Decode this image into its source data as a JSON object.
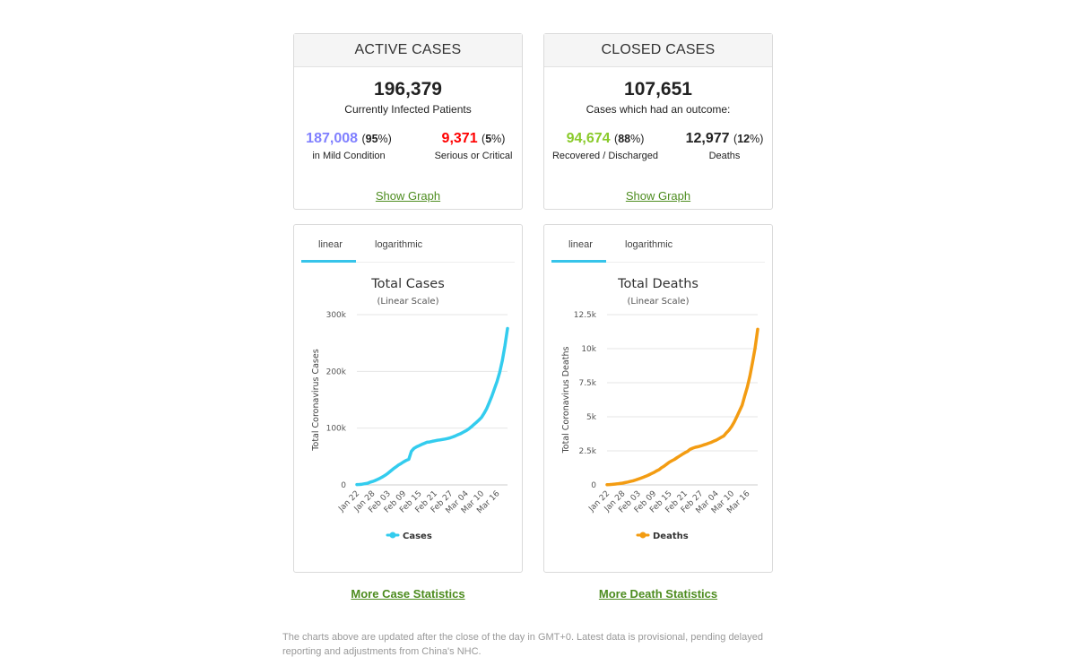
{
  "active": {
    "title": "ACTIVE CASES",
    "total": "196,379",
    "total_label": "Currently Infected Patients",
    "mild_value": "187,008",
    "mild_pct": "95",
    "mild_label": "in Mild Condition",
    "serious_value": "9,371",
    "serious_pct": "5",
    "serious_label": "Serious or Critical",
    "show_graph": "Show Graph"
  },
  "closed": {
    "title": "CLOSED CASES",
    "total": "107,651",
    "total_label": "Cases which had an outcome:",
    "recovered_value": "94,674",
    "recovered_pct": "88",
    "recovered_label": "Recovered / Discharged",
    "deaths_value": "12,977",
    "deaths_pct": "12",
    "deaths_label": "Deaths",
    "show_graph": "Show Graph"
  },
  "colors": {
    "mild": "#8080ff",
    "serious": "#ff0000",
    "recovered": "#8ACA2B",
    "link": "#4d8c1f",
    "cases_line": "#33ccee",
    "deaths_line": "#f39c12"
  },
  "tabs": {
    "linear": "linear",
    "logarithmic": "logarithmic"
  },
  "links": {
    "more_case": "More Case Statistics",
    "more_death": "More Death Statistics"
  },
  "footnote": "The charts above are updated after the close of the day in GMT+0. Latest data is provisional, pending delayed reporting and adjustments from China's NHC.",
  "chart_data": [
    {
      "type": "line",
      "title": "Total Cases",
      "subtitle": "(Linear Scale)",
      "ylabel": "Total Coronavirus Cases",
      "xlabel": "",
      "ylim": [
        0,
        300000
      ],
      "yticks": [
        0,
        100000,
        200000,
        300000
      ],
      "ytick_labels": [
        "0",
        "100k",
        "200k",
        "300k"
      ],
      "xtick_labels": [
        "Jan 22",
        "Jan 28",
        "Feb 03",
        "Feb 09",
        "Feb 15",
        "Feb 21",
        "Feb 27",
        "Mar 04",
        "Mar 10",
        "Mar 16"
      ],
      "xtick_index": [
        0,
        6,
        12,
        18,
        24,
        30,
        36,
        42,
        48,
        54
      ],
      "legend": "bottom",
      "grid": true,
      "series": [
        {
          "name": "Cases",
          "color": "#33ccee",
          "values": [
            580,
            845,
            1317,
            2015,
            2800,
            4581,
            6058,
            7813,
            9823,
            11950,
            14553,
            17391,
            20630,
            24545,
            28266,
            31439,
            34876,
            37552,
            40553,
            43099,
            45134,
            59287,
            64438,
            67100,
            69197,
            71329,
            73332,
            75184,
            75700,
            76677,
            77673,
            78651,
            79205,
            80087,
            80828,
            81820,
            83112,
            84615,
            86604,
            88585,
            90443,
            93016,
            95314,
            98425,
            102050,
            106099,
            109991,
            114381,
            118948,
            126214,
            134576,
            145483,
            156653,
            169593,
            182490,
            198238,
            218822,
            244933,
            275597
          ]
        }
      ]
    },
    {
      "type": "line",
      "title": "Total Deaths",
      "subtitle": "(Linear Scale)",
      "ylabel": "Total Coronavirus Deaths",
      "xlabel": "",
      "ylim": [
        0,
        12500
      ],
      "yticks": [
        0,
        2500,
        5000,
        7500,
        10000,
        12500
      ],
      "ytick_labels": [
        "0",
        "2.5k",
        "5k",
        "7.5k",
        "10k",
        "12.5k"
      ],
      "xtick_labels": [
        "Jan 22",
        "Jan 28",
        "Feb 03",
        "Feb 09",
        "Feb 15",
        "Feb 21",
        "Feb 27",
        "Mar 04",
        "Mar 10",
        "Mar 16"
      ],
      "xtick_index": [
        0,
        6,
        12,
        18,
        24,
        30,
        36,
        42,
        48,
        54
      ],
      "legend": "bottom",
      "grid": true,
      "series": [
        {
          "name": "Deaths",
          "color": "#f39c12",
          "values": [
            17,
            25,
            41,
            56,
            80,
            106,
            132,
            170,
            213,
            259,
            304,
            362,
            426,
            492,
            565,
            638,
            724,
            813,
            910,
            1018,
            1115,
            1261,
            1383,
            1526,
            1669,
            1775,
            1873,
            2009,
            2126,
            2247,
            2360,
            2460,
            2618,
            2699,
            2763,
            2800,
            2858,
            2923,
            2977,
            3050,
            3117,
            3202,
            3285,
            3387,
            3494,
            3599,
            3827,
            4025,
            4296,
            4628,
            5020,
            5426,
            5837,
            6519,
            7170,
            7981,
            8982,
            10049,
            11423
          ]
        }
      ]
    }
  ]
}
